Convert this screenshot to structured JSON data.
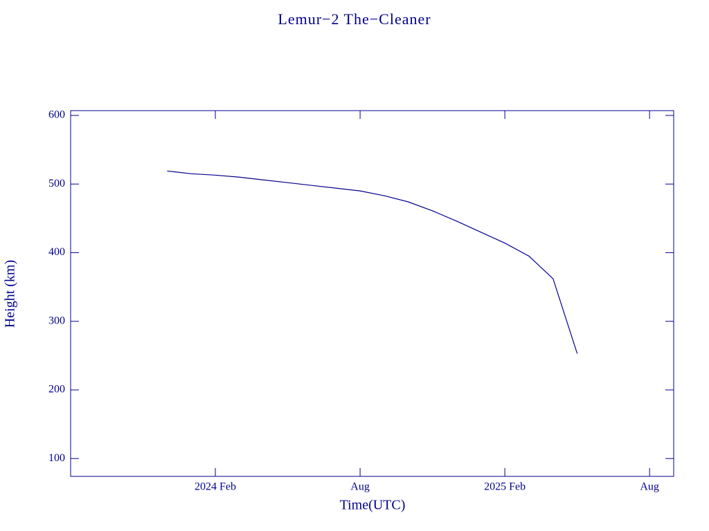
{
  "chart_data": {
    "type": "line",
    "title": "Lemur−2 The−Cleaner",
    "x_label": "Time(UTC)",
    "y_label": "Height (km)",
    "x": [
      "2023-12",
      "2024-01",
      "2024-02",
      "2024-03",
      "2024-04",
      "2024-05",
      "2024-06",
      "2024-07",
      "2024-08",
      "2024-09",
      "2024-10",
      "2024-11",
      "2024-12",
      "2025-01",
      "2025-02",
      "2025-03",
      "2025-04",
      "2025-05"
    ],
    "series": [
      {
        "name": "Height",
        "color": "#00008b",
        "values": [
          519,
          515,
          513,
          510,
          506,
          502,
          498,
          494,
          490,
          483,
          474,
          461,
          446,
          430,
          414,
          395,
          362,
          253
        ]
      }
    ],
    "xlim": [
      "2023-08",
      "2025-09"
    ],
    "xticks": [
      {
        "value": "2024-02",
        "label": "2024 Feb"
      },
      {
        "value": "2024-08",
        "label": "Aug"
      },
      {
        "value": "2025-02",
        "label": "2025 Feb"
      },
      {
        "value": "2025-08",
        "label": "Aug"
      }
    ],
    "ylim": [
      74,
      607
    ],
    "yticks": [
      100,
      200,
      300,
      400,
      500,
      600
    ],
    "grid": false
  }
}
